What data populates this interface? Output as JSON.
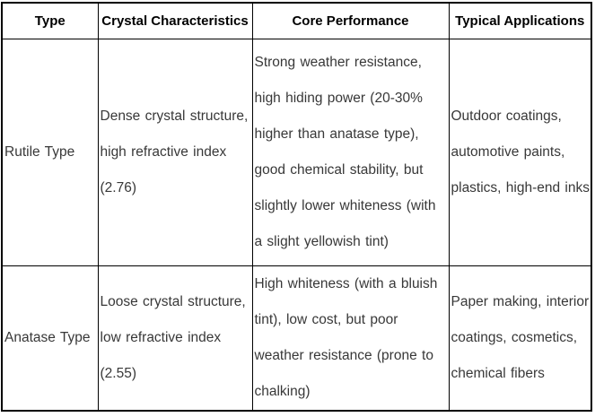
{
  "table": {
    "headers": [
      "Type",
      "Crystal Characteristics",
      "Core Performance",
      "Typical Applications"
    ],
    "rows": [
      {
        "type": "Rutile Type",
        "crystal_characteristics": [
          "Dense crystal structure,",
          "high refractive index",
          "(2.76)"
        ],
        "core_performance": [
          "Strong weather resistance,",
          "high hiding power (20-30%",
          "higher than anatase type),",
          "good chemical stability, but",
          "slightly lower whiteness (with",
          "a slight yellowish tint)"
        ],
        "typical_applications": [
          "Outdoor coatings,",
          "automotive paints,",
          "plastics, high-end inks"
        ]
      },
      {
        "type": "Anatase Type",
        "crystal_characteristics": [
          "Loose crystal structure,",
          "low refractive index",
          "(2.55)"
        ],
        "core_performance": [
          "High whiteness (with a bluish",
          "tint), low cost, but poor",
          "weather resistance (prone to",
          "chalking)"
        ],
        "typical_applications": [
          "Paper making, interior",
          "coatings, cosmetics,",
          "chemical fibers"
        ]
      }
    ]
  },
  "colors": {
    "border": "#000000",
    "header_text": "#000000",
    "body_text": "#383838",
    "background": "#ffffff"
  }
}
